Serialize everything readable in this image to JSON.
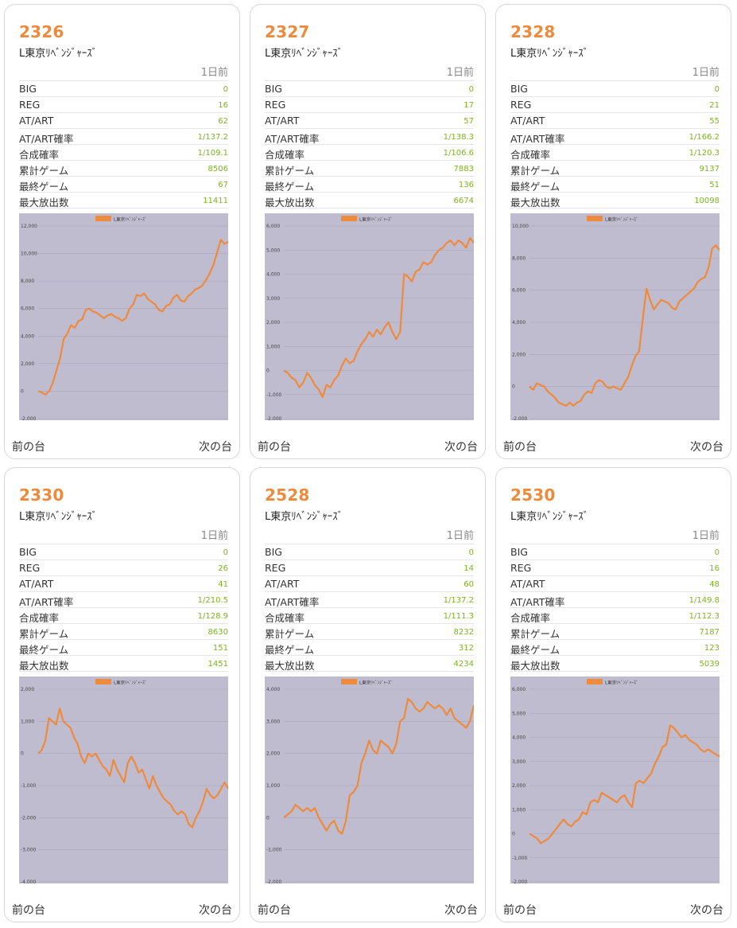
{
  "labels": {
    "period": "1日前",
    "stats": [
      "BIG",
      "REG",
      "AT/ART",
      "AT/ART確率",
      "合成確率",
      "累計ゲーム",
      "最終ゲーム",
      "最大放出数"
    ],
    "prev": "前の台",
    "next": "次の台"
  },
  "colors": {
    "accent": "#ee8a3c",
    "value": "#7ab51d",
    "plot_bg": "#c0bcd0",
    "line": "#ee8a3c"
  },
  "machines": [
    {
      "no": "2326",
      "name": "L東京ﾘﾍﾞﾝｼﾞｬｰｽﾞ",
      "stats": [
        "0",
        "16",
        "62",
        "1/137.2",
        "1/109.1",
        "8506",
        "67",
        "11411"
      ],
      "chart_data": {
        "type": "line",
        "legend": "L東京ﾘﾍﾞﾝｼﾞｬｰｽﾞ",
        "ylim": [
          -2000,
          12000
        ],
        "yticks": [
          "12,000",
          "10,000",
          "8,000",
          "6,000",
          "4,000",
          "2,000",
          "0",
          "-2,000"
        ],
        "values": [
          0,
          -100,
          -250,
          0,
          600,
          1500,
          2400,
          3800,
          4200,
          4800,
          4600,
          5100,
          5200,
          5900,
          6000,
          5800,
          5700,
          5500,
          5300,
          5500,
          5600,
          5400,
          5300,
          5100,
          5300,
          6000,
          6300,
          7000,
          6900,
          7100,
          6700,
          6500,
          6300,
          5900,
          5800,
          6200,
          6300,
          6800,
          7000,
          6600,
          6500,
          6900,
          7100,
          7400,
          7500,
          7700,
          8100,
          8600,
          9200,
          10100,
          11000,
          10700,
          10850
        ]
      }
    },
    {
      "no": "2327",
      "name": "L東京ﾘﾍﾞﾝｼﾞｬｰｽﾞ",
      "stats": [
        "0",
        "17",
        "57",
        "1/138.3",
        "1/106.6",
        "7883",
        "136",
        "6674"
      ],
      "chart_data": {
        "type": "line",
        "legend": "L東京ﾘﾍﾞﾝｼﾞｬｰｽﾞ",
        "ylim": [
          -2000,
          6000
        ],
        "yticks": [
          "6,000",
          "5,000",
          "4,000",
          "3,000",
          "2,000",
          "1,000",
          "0",
          "-1,000",
          "-2,000"
        ],
        "values": [
          0,
          -100,
          -300,
          -400,
          -700,
          -500,
          -100,
          -300,
          -600,
          -800,
          -1100,
          -600,
          -700,
          -400,
          -200,
          200,
          500,
          300,
          400,
          800,
          1100,
          1300,
          1600,
          1400,
          1700,
          1500,
          1800,
          2000,
          1600,
          1300,
          1600,
          4000,
          3900,
          3700,
          4100,
          4200,
          4500,
          4400,
          4500,
          4800,
          5000,
          5100,
          5300,
          5400,
          5200,
          5400,
          5300,
          5100,
          5500,
          5300
        ]
      }
    },
    {
      "no": "2328",
      "name": "L東京ﾘﾍﾞﾝｼﾞｬｰｽﾞ",
      "stats": [
        "0",
        "21",
        "55",
        "1/166.2",
        "1/120.3",
        "9137",
        "51",
        "10098"
      ],
      "chart_data": {
        "type": "line",
        "legend": "L東京ﾘﾍﾞﾝｼﾞｬｰｽﾞ",
        "ylim": [
          -2000,
          10000
        ],
        "yticks": [
          "10,000",
          "8,000",
          "6,000",
          "4,000",
          "2,000",
          "0",
          "-2,000"
        ],
        "values": [
          0,
          -200,
          200,
          100,
          0,
          -300,
          -500,
          -700,
          -1000,
          -1100,
          -1200,
          -1000,
          -1200,
          -1000,
          -900,
          -500,
          -300,
          -400,
          200,
          400,
          300,
          0,
          -100,
          0,
          -100,
          -200,
          200,
          600,
          1300,
          1900,
          2200,
          4200,
          6100,
          5400,
          4800,
          5100,
          5400,
          5300,
          5200,
          4900,
          4800,
          5300,
          5500,
          5700,
          5900,
          6100,
          6500,
          6700,
          6800,
          7400,
          8600,
          8800,
          8500
        ]
      }
    },
    {
      "no": "2330",
      "name": "L東京ﾘﾍﾞﾝｼﾞｬｰｽﾞ",
      "stats": [
        "0",
        "26",
        "41",
        "1/210.5",
        "1/128.9",
        "8630",
        "151",
        "1451"
      ],
      "chart_data": {
        "type": "line",
        "legend": "L東京ﾘﾍﾞﾝｼﾞｬｰｽﾞ",
        "ylim": [
          -4000,
          2000
        ],
        "yticks": [
          "2,000",
          "1,000",
          "0",
          "-1,000",
          "-2,000",
          "-3,000",
          "-4,000"
        ],
        "values": [
          0,
          100,
          400,
          1100,
          1000,
          900,
          1400,
          1000,
          900,
          800,
          500,
          300,
          -100,
          -300,
          0,
          -100,
          0,
          -200,
          -400,
          -500,
          -700,
          -200,
          -500,
          -700,
          -900,
          -300,
          -100,
          -300,
          -600,
          -500,
          -800,
          -1100,
          -700,
          -1000,
          -1200,
          -1400,
          -1500,
          -1600,
          -1800,
          -1900,
          -1800,
          -1900,
          -2200,
          -2300,
          -2000,
          -1800,
          -1500,
          -1100,
          -1300,
          -1400,
          -1300,
          -1100,
          -900,
          -1100
        ]
      }
    },
    {
      "no": "2528",
      "name": "L東京ﾘﾍﾞﾝｼﾞｬｰｽﾞ",
      "stats": [
        "0",
        "14",
        "60",
        "1/137.2",
        "1/111.3",
        "8232",
        "312",
        "4234"
      ],
      "chart_data": {
        "type": "line",
        "legend": "L東京ﾘﾍﾞﾝｼﾞｬｰｽﾞ",
        "ylim": [
          -2000,
          4000
        ],
        "yticks": [
          "4,000",
          "3,000",
          "2,000",
          "1,000",
          "0",
          "-1,000",
          "-2,000"
        ],
        "values": [
          0,
          100,
          200,
          400,
          300,
          200,
          300,
          200,
          300,
          0,
          -200,
          -400,
          -200,
          -100,
          -400,
          -500,
          -100,
          700,
          800,
          1000,
          1700,
          2000,
          2400,
          2100,
          2000,
          2400,
          2300,
          2200,
          2000,
          2300,
          3000,
          3100,
          3700,
          3600,
          3400,
          3300,
          3400,
          3600,
          3500,
          3400,
          3500,
          3400,
          3200,
          3400,
          3100,
          3000,
          2900,
          2800,
          3000,
          3500
        ]
      }
    },
    {
      "no": "2530",
      "name": "L東京ﾘﾍﾞﾝｼﾞｬｰｽﾞ",
      "stats": [
        "0",
        "16",
        "48",
        "1/149.8",
        "1/112.3",
        "7187",
        "123",
        "5039"
      ],
      "chart_data": {
        "type": "line",
        "legend": "L東京ﾘﾍﾞﾝｼﾞｬｰｽﾞ",
        "ylim": [
          -2000,
          6000
        ],
        "yticks": [
          "6,000",
          "5,000",
          "4,000",
          "3,000",
          "2,000",
          "1,000",
          "0",
          "-1,000",
          "-2,000"
        ],
        "values": [
          0,
          -100,
          -200,
          -400,
          -300,
          -200,
          0,
          200,
          400,
          600,
          400,
          300,
          500,
          600,
          900,
          800,
          1300,
          1400,
          1300,
          1700,
          1600,
          1500,
          1400,
          1300,
          1500,
          1600,
          1300,
          1100,
          2100,
          2200,
          2100,
          2300,
          2500,
          2900,
          3200,
          3600,
          3700,
          4500,
          4400,
          4200,
          4000,
          4100,
          3900,
          3800,
          3700,
          3500,
          3400,
          3500,
          3400,
          3300,
          3200
        ]
      }
    }
  ]
}
